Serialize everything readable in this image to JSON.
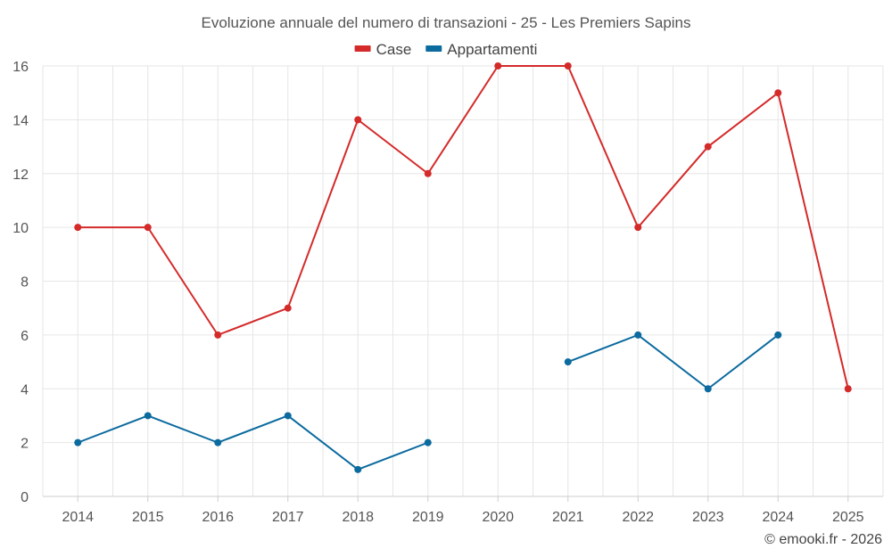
{
  "chart_data": {
    "type": "line",
    "title": "Evoluzione annuale del numero di transazioni - 25 - Les Premiers Sapins",
    "categories": [
      "2014",
      "2015",
      "2016",
      "2017",
      "2018",
      "2019",
      "2020",
      "2021",
      "2022",
      "2023",
      "2024",
      "2025"
    ],
    "series": [
      {
        "name": "Case",
        "color": "#d42a2a",
        "values": [
          10,
          10,
          6,
          7,
          14,
          12,
          16,
          16,
          10,
          13,
          15,
          4
        ]
      },
      {
        "name": "Appartamenti",
        "color": "#0b6a9e",
        "values": [
          2,
          3,
          2,
          3,
          1,
          2,
          null,
          5,
          6,
          4,
          6,
          null
        ]
      }
    ],
    "y_ticks": [
      "0",
      "2",
      "4",
      "6",
      "8",
      "10",
      "12",
      "14",
      "16"
    ],
    "ylim": [
      0,
      16
    ],
    "xlabel": "",
    "ylabel": "",
    "grid": true,
    "legend": "top-center"
  },
  "credit": "© emooki.fr - 2026"
}
